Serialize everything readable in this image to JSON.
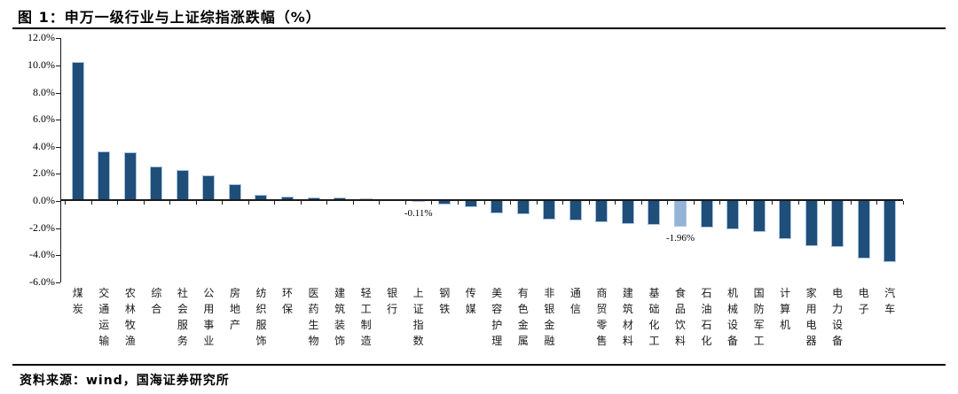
{
  "figure": {
    "title": "图 1：申万一级行业与上证综指涨跌幅（%）",
    "source": "资料来源：wind，国海证券研究所"
  },
  "colors": {
    "bar": "#1F4E79",
    "highlight": "#95B3D7",
    "bar_outline": "#A9C4E2",
    "axis": "#1A1A1A"
  },
  "chart_data": {
    "type": "bar",
    "title": "申万一级行业与上证综指涨跌幅（%）",
    "xlabel": "",
    "ylabel": "",
    "ylim": [
      -6.0,
      12.0
    ],
    "ytick_step": 2.0,
    "grid": false,
    "legend": "none",
    "y_ticks": [
      "12.0%",
      "10.0%",
      "8.0%",
      "6.0%",
      "4.0%",
      "2.0%",
      "0.0%",
      "-2.0%",
      "-4.0%",
      "-6.0%"
    ],
    "categories": [
      "煤炭",
      "交通运输",
      "农林牧渔",
      "综合",
      "社会服务",
      "公用事业",
      "房地产",
      "纺织服饰",
      "环保",
      "医药生物",
      "建筑装饰",
      "轻工制造",
      "银行",
      "上证指数",
      "钢铁",
      "传媒",
      "美容护理",
      "有色金属",
      "非银金融",
      "通信",
      "商贸零售",
      "建筑材料",
      "基础化工",
      "食品饮料",
      "石油石化",
      "机械设备",
      "国防军工",
      "计算机",
      "家用电器",
      "电力设备",
      "电子",
      "汽车"
    ],
    "values": [
      10.2,
      3.6,
      3.5,
      2.5,
      2.2,
      1.8,
      1.2,
      0.4,
      0.25,
      0.2,
      0.2,
      0.15,
      0.05,
      -0.11,
      -0.3,
      -0.5,
      -0.95,
      -1.05,
      -1.45,
      -1.5,
      -1.65,
      -1.75,
      -1.8,
      -1.96,
      -2.05,
      -2.15,
      -2.35,
      -2.85,
      -3.4,
      -3.45,
      -4.3,
      -4.55
    ],
    "highlight_index": 23,
    "annotations": [
      {
        "index": 13,
        "category": "上证指数",
        "label": "-0.11%"
      },
      {
        "index": 23,
        "category": "食品饮料",
        "label": "-1.96%"
      }
    ]
  }
}
